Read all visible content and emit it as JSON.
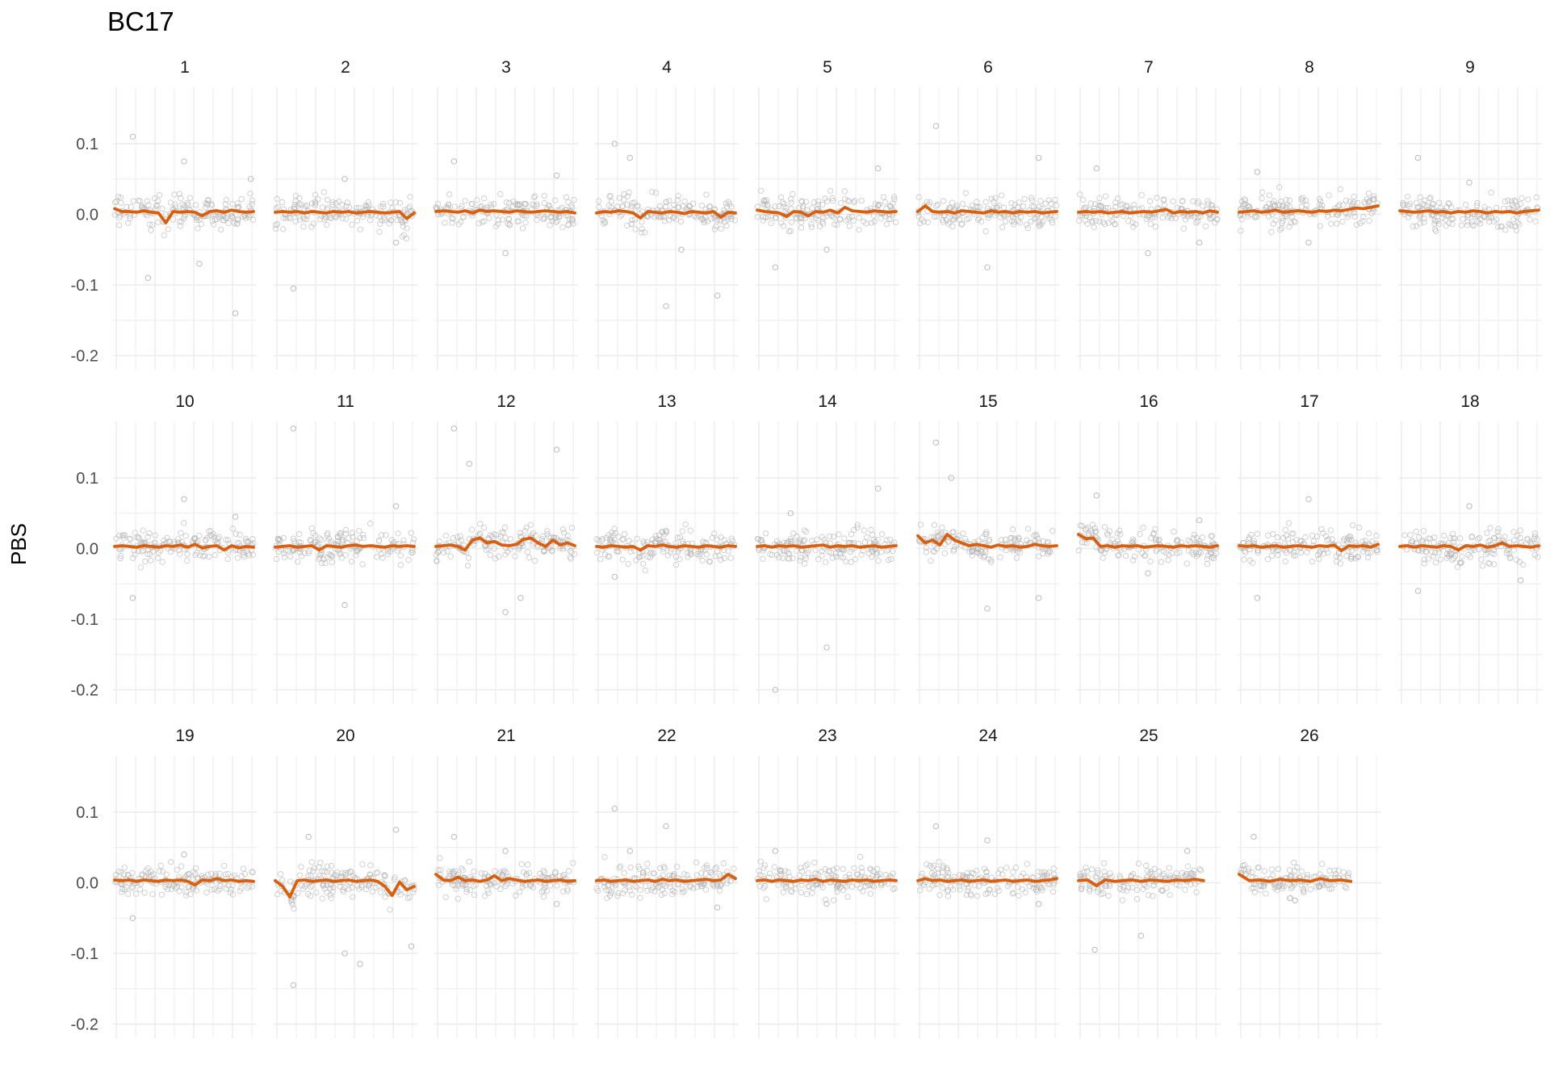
{
  "chart_data": {
    "type": "scatter",
    "title": "BC17",
    "xlabel": "",
    "ylabel": "PBS",
    "ylim": [
      -0.22,
      0.18
    ],
    "yticks": [
      0.1,
      0.0,
      -0.1,
      -0.2
    ],
    "ytick_labels": [
      "0.1",
      "0.0",
      "-0.1",
      "-0.2"
    ],
    "grid": true,
    "legend": "none",
    "colors": {
      "points": "#b3b3b3",
      "smooth": "#d95f0e",
      "grid": "#ebebeb"
    },
    "panels": [
      {
        "name": "1",
        "smooth": [
          0.008,
          0.004,
          0.004,
          0.003,
          0.005,
          0.003,
          0.002,
          -0.012,
          0.004,
          0.003,
          0.004,
          0.003,
          -0.002,
          0.004,
          0.005,
          0.003,
          0.006,
          0.004,
          0.003,
          0.004
        ],
        "outliers": [
          0.11,
          0.075,
          -0.14,
          -0.09,
          -0.07,
          0.05
        ]
      },
      {
        "name": "2",
        "smooth": [
          0.003,
          0.004,
          0.003,
          0.004,
          0.002,
          0.004,
          0.003,
          0.002,
          0.004,
          0.003,
          0.004,
          0.002,
          0.003,
          0.004,
          0.003,
          0.002,
          0.003,
          0.004,
          -0.006,
          0.002
        ],
        "outliers": [
          -0.105,
          0.05,
          -0.04
        ]
      },
      {
        "name": "3",
        "smooth": [
          0.004,
          0.005,
          0.004,
          0.003,
          0.005,
          0.002,
          0.006,
          0.004,
          0.005,
          0.004,
          0.003,
          0.005,
          0.004,
          0.003,
          0.004,
          0.005,
          0.004,
          0.003,
          0.004,
          0.002
        ],
        "outliers": [
          0.075,
          -0.055,
          0.055
        ]
      },
      {
        "name": "4",
        "smooth": [
          0.002,
          0.004,
          0.003,
          0.005,
          0.004,
          0.002,
          -0.005,
          0.004,
          0.003,
          0.002,
          0.004,
          0.003,
          0.001,
          0.004,
          0.003,
          0.002,
          0.004,
          -0.004,
          0.003,
          0.002
        ],
        "outliers": [
          0.1,
          -0.13,
          -0.115,
          0.08,
          -0.05
        ]
      },
      {
        "name": "5",
        "smooth": [
          0.006,
          0.004,
          0.003,
          0.002,
          -0.003,
          0.004,
          0.003,
          -0.002,
          0.004,
          0.003,
          0.006,
          0.002,
          0.01,
          0.005,
          0.004,
          0.003,
          0.005,
          0.004,
          0.003,
          0.004
        ],
        "outliers": [
          -0.075,
          -0.05,
          0.065
        ]
      },
      {
        "name": "6",
        "smooth": [
          0.004,
          0.012,
          0.004,
          0.003,
          0.004,
          0.002,
          0.005,
          0.004,
          0.003,
          0.002,
          0.005,
          0.003,
          0.004,
          0.002,
          0.004,
          0.003,
          0.004,
          0.002,
          0.003,
          0.004
        ],
        "outliers": [
          0.125,
          -0.075,
          0.08
        ]
      },
      {
        "name": "7",
        "smooth": [
          0.003,
          0.004,
          0.003,
          0.004,
          0.002,
          0.003,
          0.004,
          0.002,
          0.003,
          0.004,
          0.003,
          0.005,
          0.007,
          0.002,
          0.004,
          0.003,
          0.004,
          0.002,
          0.005,
          0.003
        ],
        "outliers": [
          0.065,
          -0.055,
          -0.04
        ]
      },
      {
        "name": "8",
        "smooth": [
          0.003,
          0.004,
          0.005,
          0.003,
          0.004,
          0.006,
          0.003,
          0.004,
          0.005,
          0.004,
          0.003,
          0.005,
          0.004,
          0.006,
          0.005,
          0.007,
          0.009,
          0.008,
          0.01,
          0.012
        ],
        "outliers": [
          0.06,
          -0.04
        ]
      },
      {
        "name": "9",
        "smooth": [
          0.005,
          0.004,
          0.003,
          0.004,
          0.005,
          0.003,
          0.004,
          0.002,
          0.004,
          0.003,
          0.005,
          0.004,
          0.002,
          0.004,
          0.003,
          0.004,
          0.002,
          0.004,
          0.005,
          0.006
        ],
        "outliers": [
          0.08,
          0.045
        ]
      },
      {
        "name": "10",
        "smooth": [
          0.003,
          0.004,
          0.003,
          0.002,
          0.004,
          0.003,
          0.002,
          0.004,
          0.003,
          0.005,
          0.002,
          0.006,
          0.001,
          0.003,
          0.004,
          -0.002,
          0.004,
          0.001,
          0.003,
          0.002
        ],
        "outliers": [
          -0.07,
          0.07,
          0.045
        ]
      },
      {
        "name": "11",
        "smooth": [
          0.002,
          0.003,
          0.004,
          0.002,
          0.003,
          0.004,
          -0.002,
          0.004,
          0.003,
          0.002,
          0.004,
          0.005,
          0.003,
          0.004,
          0.003,
          0.002,
          0.004,
          0.003,
          0.004,
          0.003
        ],
        "outliers": [
          0.17,
          -0.08,
          0.06
        ]
      },
      {
        "name": "12",
        "smooth": [
          0.003,
          0.004,
          0.005,
          0.003,
          -0.002,
          0.012,
          0.015,
          0.008,
          0.01,
          0.005,
          0.004,
          0.006,
          0.013,
          0.015,
          0.008,
          0.003,
          0.012,
          0.005,
          0.008,
          0.004
        ],
        "outliers": [
          0.17,
          -0.09,
          0.14,
          0.12,
          -0.07
        ]
      },
      {
        "name": "13",
        "smooth": [
          0.003,
          0.002,
          0.004,
          0.003,
          0.002,
          0.003,
          -0.002,
          0.004,
          0.003,
          0.005,
          0.003,
          0.002,
          0.004,
          0.003,
          0.002,
          0.004,
          0.003,
          0.002,
          0.004,
          0.003
        ],
        "outliers": [
          -0.04,
          0.025
        ]
      },
      {
        "name": "14",
        "smooth": [
          0.003,
          0.004,
          0.002,
          0.004,
          0.003,
          0.004,
          0.002,
          0.003,
          0.004,
          0.005,
          0.002,
          0.004,
          0.003,
          0.004,
          0.002,
          0.003,
          0.004,
          0.002,
          0.003,
          0.004
        ],
        "outliers": [
          -0.2,
          -0.14,
          0.085,
          0.05
        ]
      },
      {
        "name": "15",
        "smooth": [
          0.018,
          0.008,
          0.012,
          0.005,
          0.02,
          0.012,
          0.008,
          0.004,
          0.006,
          0.004,
          0.002,
          0.005,
          0.003,
          0.004,
          0.002,
          0.003,
          0.006,
          0.004,
          0.003,
          0.004
        ],
        "outliers": [
          0.15,
          -0.085,
          -0.07,
          0.1
        ]
      },
      {
        "name": "16",
        "smooth": [
          0.02,
          0.014,
          0.015,
          0.003,
          0.004,
          0.002,
          0.004,
          0.003,
          0.004,
          0.002,
          0.003,
          0.004,
          0.003,
          0.002,
          0.004,
          0.003,
          0.004,
          0.003,
          0.002,
          0.004
        ],
        "outliers": [
          0.075,
          -0.035,
          0.04
        ]
      },
      {
        "name": "17",
        "smooth": [
          0.004,
          0.003,
          0.004,
          0.002,
          0.003,
          0.004,
          0.002,
          0.003,
          0.004,
          0.003,
          0.002,
          0.004,
          0.003,
          0.005,
          -0.003,
          0.004,
          0.003,
          0.004,
          0.002,
          0.006
        ],
        "outliers": [
          -0.07,
          0.07
        ]
      },
      {
        "name": "18",
        "smooth": [
          0.003,
          0.004,
          0.002,
          0.004,
          0.003,
          0.002,
          0.004,
          0.003,
          -0.002,
          0.004,
          0.003,
          0.005,
          0.002,
          0.004,
          0.008,
          0.003,
          0.004,
          0.003,
          0.002,
          0.004
        ],
        "outliers": [
          -0.06,
          0.06,
          -0.045
        ]
      },
      {
        "name": "19",
        "smooth": [
          0.004,
          0.003,
          0.004,
          0.002,
          0.004,
          0.003,
          0.002,
          0.004,
          0.003,
          0.004,
          0.002,
          -0.003,
          0.004,
          0.003,
          0.006,
          0.003,
          0.004,
          0.002,
          0.003,
          0.002
        ],
        "outliers": [
          -0.05,
          0.04
        ]
      },
      {
        "name": "20",
        "smooth": [
          0.003,
          -0.005,
          -0.02,
          0.003,
          0.004,
          0.002,
          0.003,
          0.004,
          0.002,
          0.003,
          0.004,
          0.002,
          0.003,
          0.004,
          0.002,
          -0.005,
          -0.018,
          0.001,
          -0.01,
          -0.005
        ],
        "outliers": [
          -0.145,
          -0.1,
          0.075,
          0.065,
          -0.115,
          -0.09
        ]
      },
      {
        "name": "21",
        "smooth": [
          0.012,
          0.004,
          0.003,
          0.008,
          0.003,
          0.004,
          0.002,
          0.004,
          0.01,
          0.003,
          0.006,
          0.004,
          0.002,
          0.003,
          0.004,
          0.002,
          0.003,
          0.004,
          0.002,
          0.003
        ],
        "outliers": [
          0.065,
          0.045,
          -0.03
        ]
      },
      {
        "name": "22",
        "smooth": [
          0.003,
          0.004,
          0.002,
          0.003,
          0.004,
          0.002,
          0.003,
          0.004,
          0.002,
          0.005,
          0.003,
          0.004,
          0.002,
          0.003,
          0.004,
          0.005,
          0.003,
          0.004,
          0.012,
          0.006
        ],
        "outliers": [
          0.105,
          0.08,
          -0.035,
          0.045
        ]
      },
      {
        "name": "23",
        "smooth": [
          0.003,
          0.004,
          0.002,
          0.004,
          0.003,
          0.002,
          0.004,
          0.003,
          0.005,
          0.002,
          0.004,
          0.003,
          0.002,
          0.004,
          0.003,
          0.004,
          0.002,
          0.003,
          0.004,
          0.003
        ],
        "outliers": [
          0.045,
          -0.03
        ]
      },
      {
        "name": "24",
        "smooth": [
          0.003,
          0.006,
          0.003,
          0.004,
          0.002,
          0.003,
          0.004,
          0.002,
          0.003,
          0.004,
          0.002,
          0.003,
          0.004,
          0.002,
          0.003,
          0.004,
          0.002,
          0.003,
          0.004,
          0.006
        ],
        "outliers": [
          0.08,
          0.06,
          -0.03
        ]
      },
      {
        "name": "25",
        "smooth": [
          0.003,
          0.004,
          -0.004,
          0.004,
          0.002,
          0.003,
          0.004,
          0.002,
          0.004,
          0.003,
          0.002,
          0.004,
          0.003,
          0.005,
          0.003
        ],
        "outliers": [
          -0.095,
          -0.075,
          0.045
        ]
      },
      {
        "name": "26",
        "smooth": [
          0.012,
          0.003,
          0.004,
          0.002,
          0.005,
          0.003,
          0.004,
          0.002,
          0.006,
          0.003,
          0.004,
          0.002
        ],
        "outliers": [
          0.065,
          -0.025
        ]
      }
    ]
  }
}
